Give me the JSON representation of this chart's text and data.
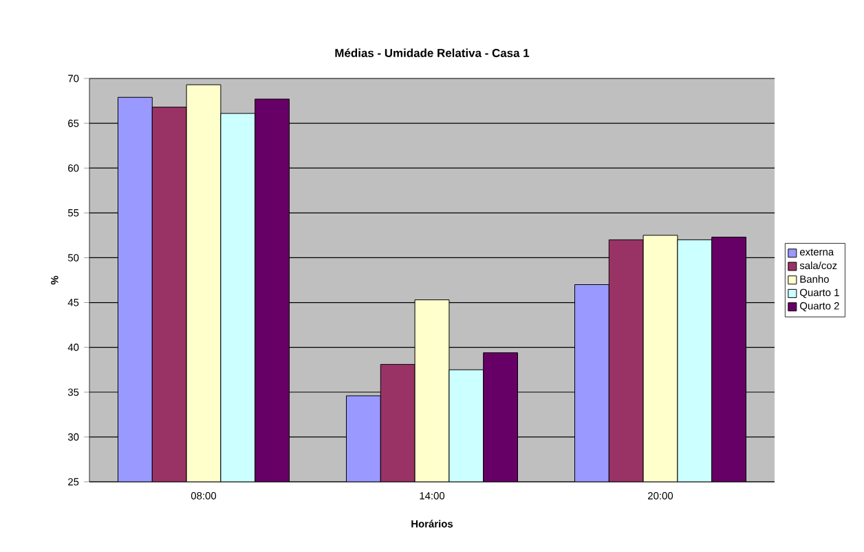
{
  "chart_data": {
    "type": "bar",
    "title": "Médias - Umidade Relativa - Casa 1",
    "xlabel": "Horários",
    "ylabel": "%",
    "categories": [
      "08:00",
      "14:00",
      "20:00"
    ],
    "series": [
      {
        "name": "externa",
        "color": "#9999ff",
        "values": [
          67.9,
          34.6,
          47.0
        ]
      },
      {
        "name": "sala/coz",
        "color": "#993366",
        "values": [
          66.8,
          38.1,
          52.0
        ]
      },
      {
        "name": "Banho",
        "color": "#ffffcc",
        "values": [
          69.3,
          45.3,
          52.5
        ]
      },
      {
        "name": "Quarto 1",
        "color": "#ccffff",
        "values": [
          66.1,
          37.5,
          52.0
        ]
      },
      {
        "name": "Quarto 2",
        "color": "#660066",
        "values": [
          67.7,
          39.4,
          52.3
        ]
      }
    ],
    "ylim": [
      25,
      70
    ],
    "yticks": [
      25,
      30,
      35,
      40,
      45,
      50,
      55,
      60,
      65,
      70
    ],
    "grid": "y",
    "legend": "right"
  }
}
